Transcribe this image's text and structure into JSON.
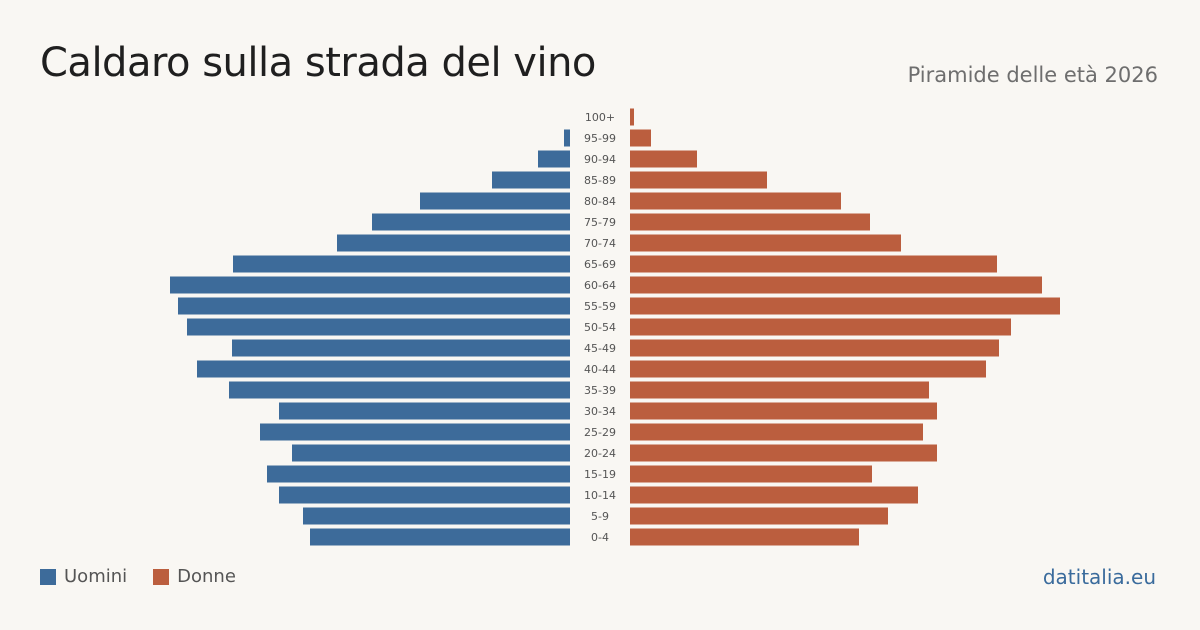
{
  "header": {
    "title": "Caldaro sulla strada del vino",
    "subtitle": "Piramide delle età 2026"
  },
  "legend": {
    "men_label": "Uomini",
    "women_label": "Donne"
  },
  "footer": {
    "source": "datitalia.eu"
  },
  "colors": {
    "men": "#3d6b9a",
    "women": "#bb5e3e",
    "background": "#f9f7f3"
  },
  "chart_data": {
    "type": "bar",
    "orientation": "horizontal-pyramid",
    "title": "Caldaro sulla strada del vino",
    "subtitle": "Piramide delle età 2026",
    "categories": [
      "0-4",
      "5-9",
      "10-14",
      "15-19",
      "20-24",
      "25-29",
      "30-34",
      "35-39",
      "40-44",
      "45-49",
      "50-54",
      "55-59",
      "60-64",
      "65-69",
      "70-74",
      "75-79",
      "80-84",
      "85-89",
      "90-94",
      "95-99",
      "100+"
    ],
    "series": [
      {
        "name": "Uomini",
        "values": [
          260,
          267,
          291,
          303,
          278,
          310,
          291,
          341,
          373,
          338,
          383,
          392,
          400,
          337,
          233,
          198,
          150,
          78,
          32,
          6,
          0
        ]
      },
      {
        "name": "Donne",
        "values": [
          229,
          258,
          288,
          242,
          307,
          293,
          307,
          299,
          356,
          369,
          381,
          430,
          412,
          367,
          271,
          240,
          211,
          137,
          67,
          21,
          4
        ]
      }
    ],
    "grid": false,
    "legend_position": "bottom-left"
  }
}
